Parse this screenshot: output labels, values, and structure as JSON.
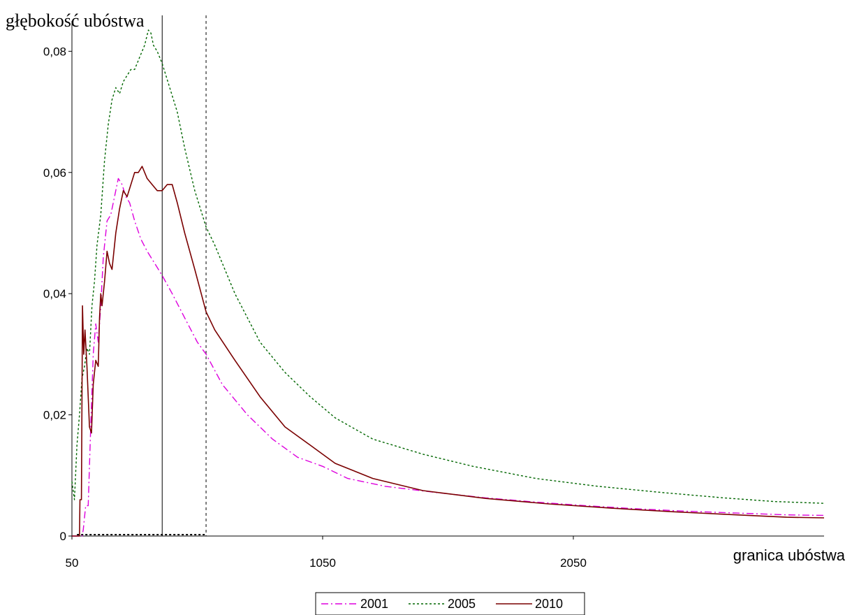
{
  "chart_data": {
    "type": "line",
    "title": "",
    "ylabel": "głębokość ubóstwa",
    "xlabel": "granica ubóstwa",
    "xlim": [
      50,
      3050
    ],
    "ylim": [
      0,
      0.085
    ],
    "x_ticks": [
      {
        "value": 50,
        "label": "50"
      },
      {
        "value": 1050,
        "label": "1050"
      },
      {
        "value": 2050,
        "label": "2050"
      }
    ],
    "y_ticks": [
      {
        "value": 0,
        "label": "0"
      },
      {
        "value": 0.02,
        "label": "0,02"
      },
      {
        "value": 0.04,
        "label": "0,04"
      },
      {
        "value": 0.06,
        "label": "0,06"
      },
      {
        "value": 0.08,
        "label": "0,08"
      }
    ],
    "grid": false,
    "legend_position": "bottom-center",
    "reference_lines": [
      {
        "x": 410,
        "style": "solid",
        "color": "#000000"
      },
      {
        "x": 585,
        "style": "dashed",
        "color": "#000000"
      }
    ],
    "series": [
      {
        "name": "2001",
        "color": "#dd00dd",
        "dash": "dashdot",
        "points": [
          [
            50,
            0
          ],
          [
            90,
            0
          ],
          [
            95,
            0.001
          ],
          [
            105,
            0.005
          ],
          [
            115,
            0.005
          ],
          [
            125,
            0.018
          ],
          [
            135,
            0.03
          ],
          [
            145,
            0.035
          ],
          [
            155,
            0.032
          ],
          [
            165,
            0.038
          ],
          [
            175,
            0.046
          ],
          [
            190,
            0.052
          ],
          [
            205,
            0.053
          ],
          [
            220,
            0.056
          ],
          [
            235,
            0.059
          ],
          [
            250,
            0.058
          ],
          [
            265,
            0.056
          ],
          [
            280,
            0.055
          ],
          [
            300,
            0.052
          ],
          [
            325,
            0.049
          ],
          [
            350,
            0.047
          ],
          [
            380,
            0.045
          ],
          [
            410,
            0.043
          ],
          [
            450,
            0.04
          ],
          [
            500,
            0.036
          ],
          [
            550,
            0.032
          ],
          [
            585,
            0.03
          ],
          [
            650,
            0.025
          ],
          [
            750,
            0.02
          ],
          [
            850,
            0.016
          ],
          [
            950,
            0.013
          ],
          [
            1050,
            0.0115
          ],
          [
            1150,
            0.0095
          ],
          [
            1300,
            0.0082
          ],
          [
            1500,
            0.0072
          ],
          [
            1700,
            0.0063
          ],
          [
            1900,
            0.0056
          ],
          [
            2100,
            0.005
          ],
          [
            2300,
            0.0045
          ],
          [
            2500,
            0.0041
          ],
          [
            2700,
            0.0038
          ],
          [
            2900,
            0.0035
          ],
          [
            3050,
            0.0034
          ]
        ]
      },
      {
        "name": "2005",
        "color": "#006600",
        "dash": "dotted",
        "points": [
          [
            50,
            0.009
          ],
          [
            60,
            0.006
          ],
          [
            70,
            0.015
          ],
          [
            80,
            0.02
          ],
          [
            90,
            0.026
          ],
          [
            100,
            0.028
          ],
          [
            110,
            0.031
          ],
          [
            120,
            0.03
          ],
          [
            130,
            0.038
          ],
          [
            140,
            0.042
          ],
          [
            150,
            0.048
          ],
          [
            165,
            0.053
          ],
          [
            180,
            0.062
          ],
          [
            195,
            0.068
          ],
          [
            210,
            0.072
          ],
          [
            225,
            0.074
          ],
          [
            240,
            0.073
          ],
          [
            255,
            0.075
          ],
          [
            270,
            0.076
          ],
          [
            285,
            0.077
          ],
          [
            300,
            0.077
          ],
          [
            320,
            0.079
          ],
          [
            340,
            0.081
          ],
          [
            355,
            0.0835
          ],
          [
            365,
            0.083
          ],
          [
            375,
            0.081
          ],
          [
            390,
            0.08
          ],
          [
            410,
            0.078
          ],
          [
            440,
            0.074
          ],
          [
            470,
            0.07
          ],
          [
            500,
            0.064
          ],
          [
            540,
            0.057
          ],
          [
            585,
            0.051
          ],
          [
            620,
            0.048
          ],
          [
            700,
            0.04
          ],
          [
            800,
            0.032
          ],
          [
            900,
            0.027
          ],
          [
            1000,
            0.023
          ],
          [
            1100,
            0.0195
          ],
          [
            1250,
            0.016
          ],
          [
            1450,
            0.0135
          ],
          [
            1650,
            0.0115
          ],
          [
            1900,
            0.0095
          ],
          [
            2150,
            0.0082
          ],
          [
            2400,
            0.0072
          ],
          [
            2650,
            0.0063
          ],
          [
            2850,
            0.0057
          ],
          [
            3050,
            0.0054
          ]
        ]
      },
      {
        "name": "2010",
        "color": "#7a0000",
        "dash": "solid",
        "points": [
          [
            50,
            0
          ],
          [
            80,
            0
          ],
          [
            82,
            0.006
          ],
          [
            88,
            0.006
          ],
          [
            92,
            0.038
          ],
          [
            97,
            0.03
          ],
          [
            102,
            0.034
          ],
          [
            110,
            0.028
          ],
          [
            120,
            0.018
          ],
          [
            128,
            0.017
          ],
          [
            135,
            0.025
          ],
          [
            145,
            0.029
          ],
          [
            155,
            0.028
          ],
          [
            160,
            0.036
          ],
          [
            165,
            0.04
          ],
          [
            170,
            0.038
          ],
          [
            180,
            0.042
          ],
          [
            190,
            0.047
          ],
          [
            200,
            0.045
          ],
          [
            210,
            0.044
          ],
          [
            225,
            0.05
          ],
          [
            240,
            0.054
          ],
          [
            255,
            0.057
          ],
          [
            270,
            0.056
          ],
          [
            285,
            0.058
          ],
          [
            300,
            0.06
          ],
          [
            315,
            0.06
          ],
          [
            330,
            0.061
          ],
          [
            350,
            0.059
          ],
          [
            370,
            0.058
          ],
          [
            390,
            0.057
          ],
          [
            410,
            0.057
          ],
          [
            430,
            0.058
          ],
          [
            450,
            0.058
          ],
          [
            470,
            0.055
          ],
          [
            500,
            0.05
          ],
          [
            540,
            0.044
          ],
          [
            585,
            0.037
          ],
          [
            620,
            0.034
          ],
          [
            700,
            0.029
          ],
          [
            800,
            0.023
          ],
          [
            900,
            0.018
          ],
          [
            1000,
            0.015
          ],
          [
            1100,
            0.012
          ],
          [
            1250,
            0.0095
          ],
          [
            1450,
            0.0075
          ],
          [
            1700,
            0.0062
          ],
          [
            1950,
            0.0053
          ],
          [
            2200,
            0.0046
          ],
          [
            2450,
            0.004
          ],
          [
            2700,
            0.0035
          ],
          [
            2900,
            0.0031
          ],
          [
            3050,
            0.003
          ]
        ]
      }
    ],
    "baseline_segment": {
      "x_from": 70,
      "x_to": 585,
      "y": 0,
      "style": "dotted",
      "color": "#000000"
    }
  }
}
